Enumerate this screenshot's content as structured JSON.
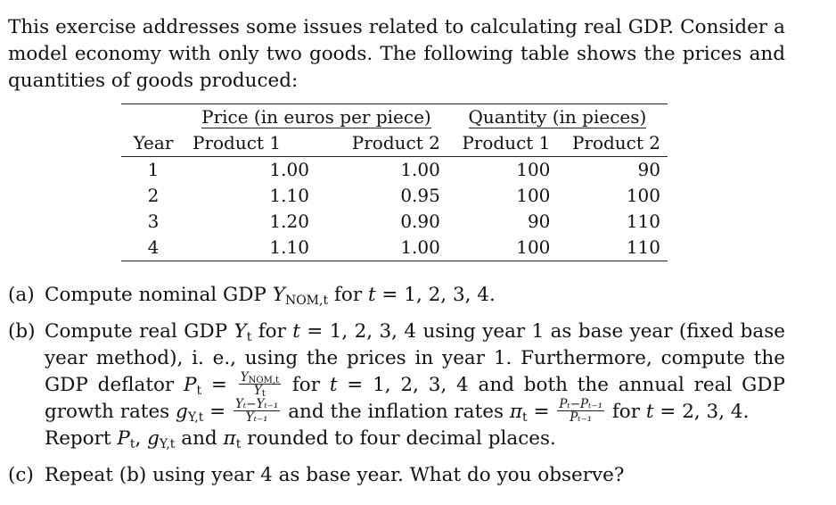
{
  "intro": "This exercise addresses some issues related to calculating real GDP. Consider a model economy with only two goods. The following table shows the prices and quantities of goods produced:",
  "table": {
    "group_price": "Price (in euros per piece)",
    "group_quantity": "Quantity (in pieces)",
    "col_year": "Year",
    "col_p1": "Product 1",
    "col_p2": "Product 2",
    "col_q1": "Product 1",
    "col_q2": "Product 2",
    "rows": [
      {
        "year": "1",
        "price1": "1.00",
        "price2": "1.00",
        "qty1": "100",
        "qty2": "90"
      },
      {
        "year": "2",
        "price1": "1.10",
        "price2": "0.95",
        "qty1": "100",
        "qty2": "100"
      },
      {
        "year": "3",
        "price1": "1.20",
        "price2": "0.90",
        "qty1": "90",
        "qty2": "110"
      },
      {
        "year": "4",
        "price1": "1.10",
        "price2": "1.00",
        "qty1": "100",
        "qty2": "110"
      }
    ]
  },
  "parts": {
    "a_label": "(a)",
    "a_text1": "Compute nominal GDP ",
    "a_var": "Y",
    "a_sub": "NOM,t",
    "a_text2": " for ",
    "a_t": "t",
    "a_text3": " = 1, 2, 3, 4.",
    "b_label": "(b)",
    "b_text1": "Compute real GDP ",
    "b_var": "Y",
    "b_sub": "t",
    "b_text2": " for ",
    "b_t": "t",
    "b_text3": " = 1, 2, 3, 4 using year 1 as base year (fixed base year method), i. e., using the prices in year 1. Furthermore, compute the GDP deflator ",
    "b_P": "P",
    "b_Psub": "t",
    "b_eq": " = ",
    "b_frac_num": "Y",
    "b_frac_num_sub": "NOM,t",
    "b_frac_den": "Y",
    "b_frac_den_sub": "t",
    "b_text4": " for ",
    "b_t2": "t",
    "b_text5": " = 1, 2, 3, 4 and both the annual real GDP growth rates ",
    "b_g": "g",
    "b_gsub": "Y,t",
    "b_eq2": " = ",
    "b_g_num": "Yₜ−Yₜ₋₁",
    "b_g_den": "Yₜ₋₁",
    "b_text6": " and the inflation rates ",
    "b_pi": "π",
    "b_pisub": "t",
    "b_eq3": " = ",
    "b_pi_num": "Pₜ−Pₜ₋₁",
    "b_pi_den": "Pₜ₋₁",
    "b_text7": " for ",
    "b_t3": "t",
    "b_text8": " = 2, 3, 4.",
    "b_report1": "Report ",
    "b_rP": "P",
    "b_rPsub": "t",
    "b_rsep1": ", ",
    "b_rg": "g",
    "b_rgsub": "Y,t",
    "b_rand": " and ",
    "b_rpi": "π",
    "b_rpisub": "t",
    "b_report2": " rounded to four decimal places.",
    "c_label": "(c)",
    "c_text": "Repeat (b) using year 4 as base year. What do you observe?"
  }
}
